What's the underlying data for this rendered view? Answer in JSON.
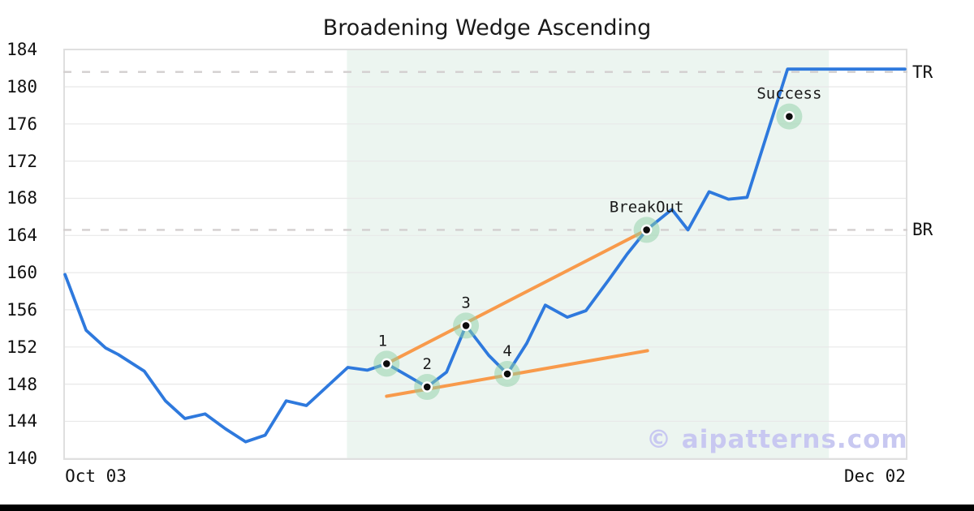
{
  "title": "Broadening Wedge Ascending",
  "watermark": "© aipatterns.com",
  "axes": {
    "y_ticks": [
      184,
      180,
      176,
      172,
      168,
      164,
      160,
      156,
      152,
      148,
      144,
      140
    ],
    "x_ticks": [
      {
        "label": "Oct 03",
        "f": 0.0385
      },
      {
        "label": "Dec 02",
        "f": 0.9615
      }
    ]
  },
  "chart_data": {
    "type": "line",
    "title": "Broadening Wedge Ascending",
    "x_axis": {
      "start_label": "Oct 03",
      "end_label": "Dec 02"
    },
    "y_range": [
      140,
      184
    ],
    "grid": "horizontal",
    "legend": "none",
    "price_series": {
      "name": "price",
      "points": [
        {
          "f": 0.002,
          "v": 159.8
        },
        {
          "f": 0.027,
          "v": 153.8
        },
        {
          "f": 0.05,
          "v": 151.9
        },
        {
          "f": 0.065,
          "v": 151.2
        },
        {
          "f": 0.096,
          "v": 149.4
        },
        {
          "f": 0.121,
          "v": 146.2
        },
        {
          "f": 0.144,
          "v": 144.3
        },
        {
          "f": 0.168,
          "v": 144.8
        },
        {
          "f": 0.192,
          "v": 143.2
        },
        {
          "f": 0.216,
          "v": 141.8
        },
        {
          "f": 0.239,
          "v": 142.5
        },
        {
          "f": 0.264,
          "v": 146.2
        },
        {
          "f": 0.288,
          "v": 145.7
        },
        {
          "f": 0.337,
          "v": 149.8
        },
        {
          "f": 0.36,
          "v": 149.5
        },
        {
          "f": 0.383,
          "v": 150.2
        },
        {
          "f": 0.431,
          "v": 147.7
        },
        {
          "f": 0.454,
          "v": 149.3
        },
        {
          "f": 0.477,
          "v": 154.3
        },
        {
          "f": 0.504,
          "v": 151.1
        },
        {
          "f": 0.526,
          "v": 149.1
        },
        {
          "f": 0.549,
          "v": 152.4
        },
        {
          "f": 0.571,
          "v": 156.5
        },
        {
          "f": 0.597,
          "v": 155.2
        },
        {
          "f": 0.619,
          "v": 155.9
        },
        {
          "f": 0.646,
          "v": 159.2
        },
        {
          "f": 0.668,
          "v": 162.0
        },
        {
          "f": 0.691,
          "v": 164.6
        },
        {
          "f": 0.721,
          "v": 166.8
        },
        {
          "f": 0.74,
          "v": 164.6
        },
        {
          "f": 0.765,
          "v": 168.7
        },
        {
          "f": 0.788,
          "v": 167.9
        },
        {
          "f": 0.81,
          "v": 168.1
        },
        {
          "f": 0.858,
          "v": 181.9
        },
        {
          "f": 0.997,
          "v": 181.9
        }
      ]
    },
    "trendlines": [
      {
        "name": "upper",
        "from": {
          "f": 0.383,
          "v": 150.2
        },
        "to": {
          "f": 0.691,
          "v": 164.6
        }
      },
      {
        "name": "lower",
        "from": {
          "f": 0.383,
          "v": 146.7
        },
        "to": {
          "f": 0.692,
          "v": 151.6
        }
      }
    ],
    "levels": [
      {
        "label": "TR",
        "value": 181.6
      },
      {
        "label": "BR",
        "value": 164.6
      }
    ],
    "markers": [
      {
        "label": "1",
        "f": 0.383,
        "v": 150.2
      },
      {
        "label": "2",
        "f": 0.431,
        "v": 147.7
      },
      {
        "label": "3",
        "f": 0.477,
        "v": 154.3
      },
      {
        "label": "4",
        "f": 0.526,
        "v": 149.1
      },
      {
        "label": "BreakOut",
        "f": 0.691,
        "v": 164.6
      },
      {
        "label": "Success",
        "f": 0.86,
        "v": 176.8
      }
    ],
    "pattern_zone": {
      "f_start": 0.336,
      "f_end": 0.907
    }
  },
  "colors": {
    "price_line": "#2e79dd",
    "trendline": "#f89a4b",
    "pattern_zone": "#ecf5f0",
    "marker_halo": "#8ecfa6",
    "marker_dot": "#0d0d0d",
    "level_dash": "#d3cfcf",
    "gridline": "#e8e8e8",
    "plot_border": "#dfdfdf",
    "watermark": "#c8c8f1"
  }
}
